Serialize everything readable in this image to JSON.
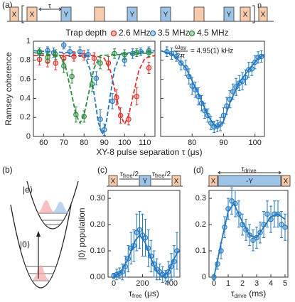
{
  "panel_labels": [
    "(a)",
    "(b)",
    "(c)",
    "(d)"
  ],
  "sequence_a": {
    "pulses": [
      {
        "label": "X",
        "color": "#f8cbad"
      },
      {
        "label": "X",
        "color": "#f8cbad"
      },
      {
        "label": "Y",
        "color": "#9dc3e6"
      },
      {
        "label": null,
        "color": "#f8cbad"
      },
      {
        "label": "Y",
        "color": "#9dc3e6"
      },
      {
        "label": "Y",
        "color": "#9dc3e6"
      },
      {
        "label": null,
        "color": "#f8cbad"
      },
      {
        "label": "Y",
        "color": "#9dc3e6"
      },
      {
        "label": "X",
        "color": "#f8cbad"
      },
      {
        "label": "X",
        "color": "#f8cbad"
      }
    ],
    "tau": "τ",
    "repeat": "n"
  },
  "levels_b": {
    "excited": "|e⟩",
    "ground": "|0⟩"
  },
  "sequence_c": {
    "pulses": [
      {
        "label": "X",
        "color": "#f8cbad"
      },
      {
        "label": "Y",
        "color": "#9dc3e6"
      },
      {
        "label": "X",
        "color": "#f8cbad"
      }
    ],
    "gap": {
      "main": "τ",
      "sub": "free",
      "rest": "/2"
    }
  },
  "sequence_d": {
    "pulses": [
      {
        "label": "X",
        "color": "#f8cbad"
      },
      {
        "label": "-Y",
        "color": "#9dc3e6"
      },
      {
        "label": "X",
        "color": "#f8cbad"
      }
    ],
    "span": {
      "main": "τ",
      "sub": "drive"
    }
  },
  "chart_data": [
    {
      "type": "scatter",
      "ylabel": "Ramsey coherence",
      "xlabel": "XY-8 pulse separation τ (μs)",
      "legend_title": "Trap depth",
      "legend": "top",
      "fit_dashed": true,
      "xlim": [
        55,
        115
      ],
      "xticks": [
        60,
        70,
        80,
        90,
        100,
        110
      ],
      "ylim": [
        0,
        1
      ],
      "yticks": [
        0,
        0.2,
        0.4,
        0.6,
        0.8,
        1
      ],
      "series": [
        {
          "name": "2.6 MHz",
          "color": "#e0312b",
          "x": [
            58,
            62,
            66,
            70,
            75,
            80,
            85,
            92,
            96,
            98,
            102,
            106,
            112
          ],
          "values": [
            0.81,
            0.79,
            0.77,
            0.82,
            0.84,
            0.85,
            0.82,
            0.77,
            0.41,
            0.22,
            0.18,
            0.42,
            0.72
          ],
          "errors": [
            0.06,
            0.06,
            0.07,
            0.05,
            0.05,
            0.05,
            0.06,
            0.07,
            0.08,
            0.08,
            0.06,
            0.09,
            0.06
          ],
          "fit": {
            "x": [
              55,
              85,
              90,
              93,
              96,
              98,
              100,
              102,
              104,
              107,
              110,
              115
            ],
            "values": [
              0.85,
              0.85,
              0.82,
              0.69,
              0.41,
              0.22,
              0.13,
              0.22,
              0.41,
              0.69,
              0.82,
              0.85
            ]
          }
        },
        {
          "name": "3.5 MHz",
          "color": "#2378c0",
          "x": [
            58,
            62,
            65,
            70,
            73,
            78,
            82,
            86,
            88,
            90,
            94,
            100,
            104,
            108,
            112
          ],
          "values": [
            0.88,
            0.9,
            0.88,
            0.96,
            0.89,
            0.89,
            0.86,
            0.61,
            0.18,
            0.07,
            0.37,
            0.8,
            0.87,
            0.89,
            0.9
          ],
          "errors": [
            0.05,
            0.04,
            0.05,
            0.04,
            0.05,
            0.05,
            0.05,
            0.07,
            0.1,
            0.06,
            0.08,
            0.06,
            0.05,
            0.04,
            0.04
          ],
          "fit": {
            "x": [
              55,
              80,
              83,
              85,
              87,
              89,
              91,
              93,
              95,
              98,
              115
            ],
            "values": [
              0.9,
              0.87,
              0.7,
              0.44,
              0.15,
              0.02,
              0.15,
              0.44,
              0.7,
              0.87,
              0.9
            ]
          }
        },
        {
          "name": "4.5 MHz",
          "color": "#2a8a3c",
          "x": [
            58,
            62,
            66,
            70,
            74,
            76,
            80,
            84,
            88,
            95,
            100,
            106,
            112
          ],
          "values": [
            0.89,
            0.83,
            0.86,
            0.74,
            0.63,
            0.23,
            0.21,
            0.55,
            0.77,
            0.87,
            0.86,
            0.88,
            0.88
          ],
          "errors": [
            0.04,
            0.05,
            0.05,
            0.07,
            0.07,
            0.08,
            0.06,
            0.08,
            0.06,
            0.05,
            0.05,
            0.04,
            0.04
          ],
          "fit": {
            "x": [
              55,
              68,
              71,
              74,
              76,
              78,
              80,
              82,
              85,
              88,
              115
            ],
            "values": [
              0.88,
              0.85,
              0.72,
              0.43,
              0.23,
              0.14,
              0.23,
              0.43,
              0.72,
              0.85,
              0.88
            ]
          }
        }
      ]
    },
    {
      "type": "scatter",
      "show_ytick_labels": false,
      "fit_dashed": false,
      "annotation": {
        "main": "ω",
        "sub": "av",
        "denominator": "2π",
        "rest": "= 4.95(1) kHz"
      },
      "xlim": [
        70,
        103
      ],
      "xticks": [
        80,
        90,
        100
      ],
      "ylim": [
        0,
        1
      ],
      "yticks": [
        0,
        0.2,
        0.4,
        0.6,
        0.8,
        1
      ],
      "series": [
        {
          "color": "#2378c0",
          "x": [
            72,
            73.5,
            75,
            76.5,
            78,
            79,
            80,
            81,
            82,
            83,
            84,
            85,
            86,
            87,
            88,
            89,
            90,
            91,
            92,
            93,
            94,
            95,
            96,
            97,
            98,
            99,
            100,
            101,
            102
          ],
          "values": [
            0.89,
            0.87,
            0.84,
            0.77,
            0.72,
            0.63,
            0.53,
            0.49,
            0.42,
            0.35,
            0.27,
            0.22,
            0.14,
            0.1,
            0.11,
            0.13,
            0.22,
            0.32,
            0.39,
            0.47,
            0.52,
            0.56,
            0.58,
            0.62,
            0.7,
            0.71,
            0.78,
            0.83,
            0.84
          ],
          "errors": [
            0.05,
            0.06,
            0.05,
            0.07,
            0.08,
            0.08,
            0.09,
            0.08,
            0.09,
            0.08,
            0.08,
            0.07,
            0.07,
            0.06,
            0.06,
            0.07,
            0.08,
            0.09,
            0.09,
            0.08,
            0.09,
            0.08,
            0.09,
            0.08,
            0.08,
            0.07,
            0.07,
            0.06,
            0.06
          ],
          "fit": {
            "x": [
              70,
              74,
              78,
              82,
              85,
              87,
              88.5,
              90,
              92,
              95,
              98,
              101,
              103
            ],
            "values": [
              0.9,
              0.86,
              0.72,
              0.45,
              0.22,
              0.12,
              0.1,
              0.16,
              0.35,
              0.57,
              0.7,
              0.82,
              0.86
            ]
          }
        }
      ]
    },
    {
      "type": "scatter",
      "ylabel": "|0⟩ population",
      "xlabel": {
        "main": "τ",
        "sub": "free",
        "unit": " (μs)"
      },
      "fit_dashed": false,
      "xlim": [
        -40,
        460
      ],
      "xticks": [
        0,
        200,
        400
      ],
      "ylim": [
        0,
        0.33
      ],
      "yticks": [
        {
          "value": 0,
          "label": "0.00"
        },
        {
          "value": 0.1,
          "label": "0.10"
        },
        {
          "value": 0.2,
          "label": "0.20"
        },
        {
          "value": 0.3,
          "label": "0.30"
        }
      ],
      "series": [
        {
          "color": "#2378c0",
          "x": [
            0,
            20,
            40,
            60,
            80,
            100,
            120,
            140,
            160,
            180,
            200,
            220,
            240,
            260,
            280,
            300,
            320,
            340,
            360,
            380,
            400,
            420,
            440
          ],
          "values": [
            0.005,
            0.01,
            0.015,
            0.02,
            0.04,
            0.07,
            0.11,
            0.12,
            0.17,
            0.18,
            0.16,
            0.15,
            0.11,
            0.08,
            0.05,
            0.03,
            0.02,
            0.01,
            0.005,
            0.02,
            0.04,
            0.06,
            0.1
          ],
          "errors": [
            0.01,
            0.02,
            0.02,
            0.03,
            0.04,
            0.05,
            0.06,
            0.06,
            0.07,
            0.07,
            0.08,
            0.07,
            0.07,
            0.06,
            0.05,
            0.04,
            0.03,
            0.03,
            0.02,
            0.04,
            0.05,
            0.06,
            0.07
          ],
          "fit": {
            "x": [
              0,
              50,
              100,
              150,
              180,
              220,
              260,
              300,
              340,
              380,
              420,
              450
            ],
            "values": [
              0,
              0.02,
              0.07,
              0.14,
              0.16,
              0.13,
              0.07,
              0.02,
              0,
              0.02,
              0.07,
              0.1
            ]
          }
        }
      ]
    },
    {
      "type": "scatter",
      "xlabel": {
        "main": "τ",
        "sub": "drive",
        "unit": " (ms)"
      },
      "fit_dashed": false,
      "xlim": [
        -0.35,
        5.2
      ],
      "xticks": [
        0,
        1,
        2,
        3,
        4,
        5
      ],
      "ylim": [
        0,
        0.33
      ],
      "yticks": [
        0,
        0.1,
        0.2,
        0.3
      ],
      "series": [
        {
          "color": "#2378c0",
          "x": [
            0,
            0.25,
            0.5,
            0.75,
            1,
            1.25,
            1.5,
            1.75,
            2,
            2.25,
            2.5,
            2.75,
            3,
            3.25,
            3.5,
            3.75,
            4,
            4.25,
            4.5,
            4.75,
            5
          ],
          "values": [
            0,
            0.05,
            0.1,
            0.19,
            0.26,
            0.29,
            0.28,
            0.24,
            0.2,
            0.18,
            0.16,
            0.14,
            0.15,
            0.17,
            0.2,
            0.24,
            0.22,
            0.24,
            0.24,
            0.2,
            0.19
          ],
          "errors": [
            0.01,
            0.02,
            0.03,
            0.04,
            0.04,
            0.05,
            0.05,
            0.05,
            0.04,
            0.04,
            0.04,
            0.04,
            0.04,
            0.04,
            0.05,
            0.05,
            0.05,
            0.05,
            0.05,
            0.05,
            0.05
          ],
          "fit": {
            "x": [
              0,
              0.5,
              1,
              1.4,
              2,
              2.5,
              3,
              3.5,
              4,
              4.5,
              5
            ],
            "values": [
              0,
              0.13,
              0.25,
              0.28,
              0.21,
              0.16,
              0.15,
              0.19,
              0.23,
              0.24,
              0.22
            ]
          }
        }
      ]
    }
  ]
}
